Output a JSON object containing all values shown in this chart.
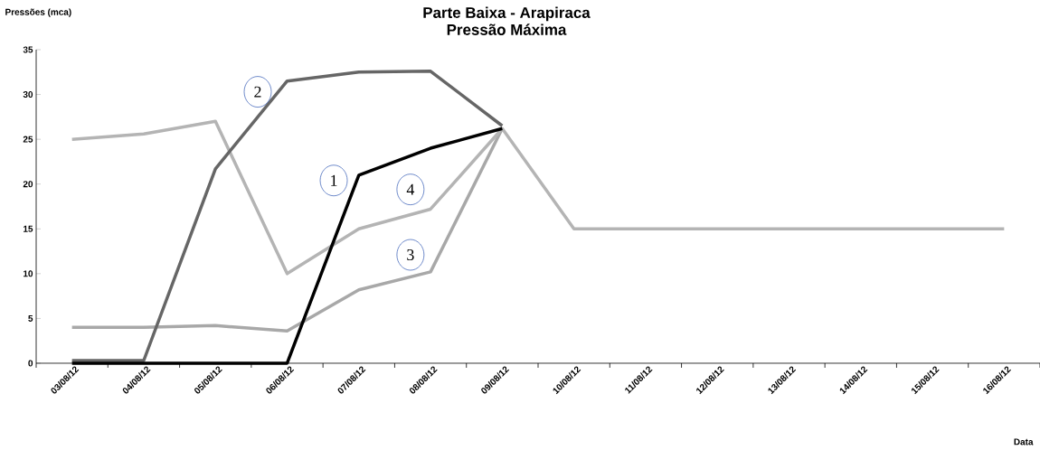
{
  "chart_data": {
    "type": "line",
    "title": "Parte Baixa - Arapiraca",
    "subtitle": "Pressão Máxima",
    "xlabel": "Data",
    "ylabel": "Pressões (mca)",
    "categories": [
      "03/08/12",
      "04/08/12",
      "05/08/12",
      "06/08/12",
      "07/08/12",
      "08/08/12",
      "09/08/12",
      "10/08/12",
      "11/08/12",
      "12/08/12",
      "13/08/12",
      "14/08/12",
      "15/08/12",
      "16/08/12"
    ],
    "series": [
      {
        "color": "#a8a8a8",
        "values": [
          4,
          4,
          4.2,
          3.6,
          8.2,
          10.2,
          26.2,
          null,
          null,
          null,
          null,
          null,
          null,
          null
        ]
      },
      {
        "color": "#b4b4b4",
        "values": [
          25,
          25.6,
          27,
          10,
          15,
          17.2,
          26.2,
          15,
          15,
          15,
          15,
          15,
          15,
          15
        ]
      },
      {
        "color": "#666666",
        "values": [
          0.3,
          0.3,
          21.7,
          31.5,
          32.5,
          32.6,
          26.5,
          null,
          null,
          null,
          null,
          null,
          null,
          null
        ]
      },
      {
        "color": "#000000",
        "values": [
          0,
          0,
          0,
          0,
          21,
          24,
          26.2,
          null,
          null,
          null,
          null,
          null,
          null,
          null
        ]
      }
    ],
    "annotations": [
      "2",
      "1",
      "4",
      "3"
    ],
    "ylim": [
      0,
      35
    ],
    "yticks": [
      0,
      5,
      10,
      15,
      20,
      25,
      30,
      35
    ],
    "grid": false,
    "marker": "none",
    "line_style": "solid"
  }
}
